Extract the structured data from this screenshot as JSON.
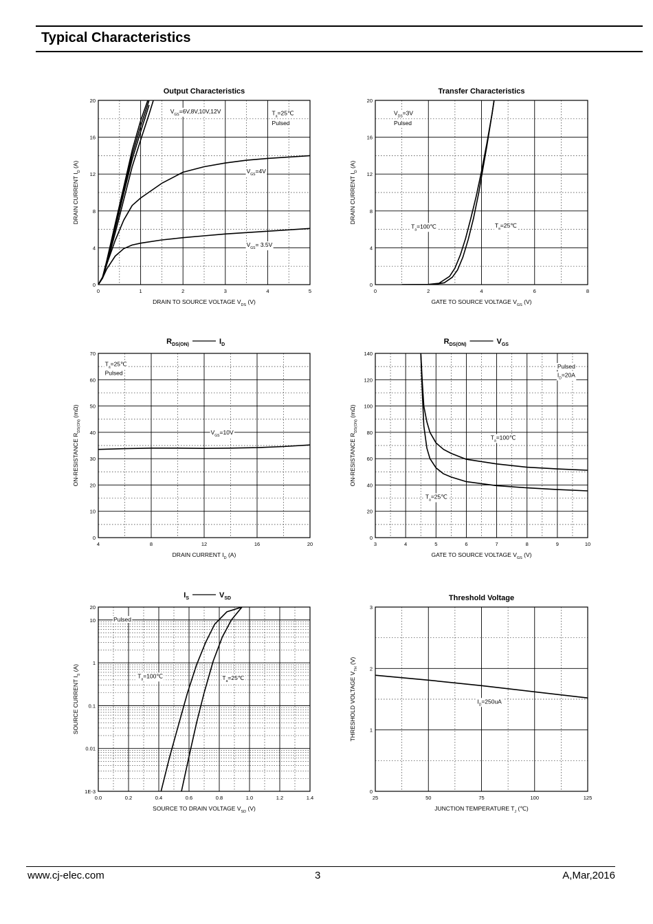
{
  "page": {
    "title": "Typical Characteristics",
    "footer_left": "www.cj-elec.com",
    "footer_center": "3",
    "footer_right": "A,Mar,2016"
  },
  "chart_data": [
    {
      "id": "output",
      "type": "line",
      "title": "Output Characteristics",
      "xlabel": "DRAIN TO SOURCE VOLTAGE",
      "xsym": "V",
      "xsub": "DS",
      "xunit": "(V)",
      "ylabel": "DRAIN CURRENT",
      "ysym": "I",
      "ysub": "D",
      "yunit": "(A)",
      "xlim": [
        0,
        5
      ],
      "ylim": [
        0,
        20
      ],
      "xticks": [
        0,
        1,
        2,
        3,
        4,
        5
      ],
      "yticks": [
        0,
        4,
        8,
        12,
        16,
        20
      ],
      "series": [
        {
          "name": "VGS=12V",
          "x": [
            0,
            0.1,
            0.2,
            0.4,
            0.6,
            0.8,
            1.0,
            1.2,
            1.3
          ],
          "y": [
            0,
            0.8,
            2.6,
            6.6,
            10.6,
            14.6,
            17.8,
            20.4,
            21.5
          ]
        },
        {
          "name": "VGS=10V",
          "x": [
            0,
            0.1,
            0.2,
            0.4,
            0.6,
            0.8,
            1.0,
            1.2,
            1.25
          ],
          "y": [
            0,
            0.8,
            2.5,
            6.4,
            10.3,
            14.1,
            17.2,
            20.0,
            20.6
          ]
        },
        {
          "name": "VGS=8V",
          "x": [
            0,
            0.1,
            0.2,
            0.4,
            0.6,
            0.8,
            1.0,
            1.2
          ],
          "y": [
            0,
            0.8,
            2.4,
            6.1,
            9.9,
            13.6,
            16.6,
            19.5
          ]
        },
        {
          "name": "VGS=6V",
          "x": [
            0,
            0.1,
            0.2,
            0.4,
            0.6,
            0.8,
            1.0,
            1.2,
            1.3
          ],
          "y": [
            0,
            0.7,
            2.2,
            5.6,
            9.2,
            12.8,
            15.7,
            18.5,
            20.0
          ]
        },
        {
          "name": "VGS=4V",
          "x": [
            0,
            0.1,
            0.2,
            0.4,
            0.6,
            0.8,
            1.0,
            1.5,
            2.0,
            2.5,
            3.0,
            3.5,
            4.0,
            4.5,
            5.0
          ],
          "y": [
            0,
            0.8,
            2.2,
            4.8,
            7.0,
            8.6,
            9.4,
            11.0,
            12.2,
            12.8,
            13.2,
            13.5,
            13.7,
            13.85,
            14.0
          ]
        },
        {
          "name": "VGS=3.5V",
          "x": [
            0,
            0.1,
            0.2,
            0.4,
            0.6,
            0.8,
            1.0,
            1.5,
            2.0,
            2.5,
            3.0,
            3.5,
            4.0,
            4.5,
            5.0
          ],
          "y": [
            0,
            0.7,
            1.7,
            3.1,
            3.9,
            4.3,
            4.5,
            4.85,
            5.1,
            5.3,
            5.5,
            5.65,
            5.8,
            5.95,
            6.1
          ]
        }
      ],
      "annotations": [
        {
          "text": "V",
          "sub": "GS",
          "rest": "=6V,8V,10V,12V",
          "x": 1.7,
          "y": 18.6
        },
        {
          "text": "T",
          "sub": "a",
          "rest": "=25℃",
          "x": 4.1,
          "y": 18.4
        },
        {
          "text": "Pulsed",
          "x": 4.1,
          "y": 17.3
        },
        {
          "text": "V",
          "sub": "GS",
          "rest": "=4V",
          "x": 3.5,
          "y": 12.1
        },
        {
          "text": "V",
          "sub": "GS",
          "rest": "= 3.5V",
          "x": 3.5,
          "y": 4.1
        }
      ]
    },
    {
      "id": "transfer",
      "type": "line",
      "title": "Transfer Characteristics",
      "xlabel": "GATE TO SOURCE VOLTAGE",
      "xsym": "V",
      "xsub": "GS",
      "xunit": "(V)",
      "ylabel": "DRAIN CURRENT",
      "ysym": "I",
      "ysub": "D",
      "yunit": "(A)",
      "xlim": [
        0,
        8
      ],
      "ylim": [
        0,
        20
      ],
      "xticks": [
        0,
        2,
        4,
        6,
        8
      ],
      "yticks": [
        0,
        4,
        8,
        12,
        16,
        20
      ],
      "series": [
        {
          "name": "Ta=100℃",
          "x": [
            1.0,
            2.0,
            2.4,
            2.8,
            3.0,
            3.2,
            3.4,
            3.6,
            3.8,
            4.0,
            4.2,
            4.4,
            4.5
          ],
          "y": [
            0,
            0.02,
            0.15,
            0.9,
            1.8,
            3.2,
            5.0,
            7.2,
            9.6,
            12.3,
            15.3,
            18.6,
            20.5
          ]
        },
        {
          "name": "Ta=25℃",
          "x": [
            1.0,
            2.2,
            2.6,
            2.9,
            3.1,
            3.3,
            3.5,
            3.7,
            3.9,
            4.0,
            4.2,
            4.4,
            4.5
          ],
          "y": [
            0,
            0.02,
            0.2,
            0.8,
            1.6,
            3.0,
            4.9,
            7.2,
            10.0,
            11.7,
            15.0,
            18.6,
            20.5
          ]
        }
      ],
      "annotations": [
        {
          "text": "V",
          "sub": "DS",
          "rest": "=3V",
          "x": 0.7,
          "y": 18.4
        },
        {
          "text": "Pulsed",
          "x": 0.7,
          "y": 17.3
        },
        {
          "text": "T",
          "sub": "a",
          "rest": "=100℃",
          "x": 1.35,
          "y": 6.1
        },
        {
          "text": "T",
          "sub": "a",
          "rest": "=25℃",
          "x": 4.5,
          "y": 6.2
        }
      ]
    },
    {
      "id": "rdson-id",
      "type": "line",
      "title_parts": [
        "R",
        "DS(ON)",
        "I",
        "D"
      ],
      "xlabel": "DRAIN CURRENT",
      "xsym": "I",
      "xsub": "D",
      "xunit": "(A)",
      "ylabel": "ON-RESISTANCE",
      "ysym": "R",
      "ysub": "DS(ON)",
      "yunit": "(mΩ)",
      "xlim": [
        4,
        20
      ],
      "ylim": [
        0,
        70
      ],
      "xticks": [
        4,
        8,
        12,
        16,
        20
      ],
      "yticks": [
        0,
        10,
        20,
        30,
        40,
        50,
        60,
        70
      ],
      "series": [
        {
          "name": "VGS=10V",
          "x": [
            4,
            6,
            8,
            10,
            12,
            14,
            16,
            18,
            20
          ],
          "y": [
            33.5,
            33.8,
            34.0,
            34.0,
            33.9,
            34.0,
            34.2,
            34.6,
            35.2
          ]
        }
      ],
      "annotations": [
        {
          "text": "T",
          "sub": "a",
          "rest": "=25℃",
          "x": 4.5,
          "y": 65.2
        },
        {
          "text": "Pulsed",
          "x": 4.5,
          "y": 61.8
        },
        {
          "text": "V",
          "sub": "GS",
          "rest": "=10V",
          "x": 12.5,
          "y": 39.2
        }
      ]
    },
    {
      "id": "rdson-vgs",
      "type": "line",
      "title_parts": [
        "R",
        "DS(ON)",
        "V",
        "GS"
      ],
      "xlabel": "GATE TO SOURCE VOLTAGE",
      "xsym": "V",
      "xsub": "GS",
      "xunit": "(V)",
      "ylabel": "ON-RESISTANCE",
      "ysym": "R",
      "ysub": "DS(ON)",
      "yunit": "(mΩ)",
      "xlim": [
        3,
        10
      ],
      "ylim": [
        0,
        140
      ],
      "xticks": [
        3,
        4,
        5,
        6,
        7,
        8,
        9,
        10
      ],
      "yticks": [
        0,
        20,
        40,
        60,
        80,
        100,
        120,
        140
      ],
      "series": [
        {
          "name": "Ta=100℃",
          "x": [
            4.5,
            4.55,
            4.6,
            4.7,
            4.8,
            5.0,
            5.25,
            5.5,
            6.0,
            7.0,
            8.0,
            9.0,
            10.0
          ],
          "y": [
            140,
            118,
            100,
            88,
            80,
            72,
            67,
            64,
            59.5,
            56,
            53.5,
            52.2,
            51.2
          ]
        },
        {
          "name": "Ta=25℃",
          "x": [
            4.5,
            4.55,
            4.6,
            4.7,
            4.8,
            5.0,
            5.25,
            5.5,
            6.0,
            7.0,
            8.0,
            9.0,
            10.0
          ],
          "y": [
            140,
            110,
            85,
            68,
            60,
            53,
            48.5,
            46,
            42.5,
            39.5,
            37.8,
            36.5,
            35.5
          ]
        }
      ],
      "annotations": [
        {
          "text": "Pulsed",
          "x": 9.0,
          "y": 128.5
        },
        {
          "text": "I",
          "sub": "D",
          "rest": "=20A",
          "x": 9.0,
          "y": 122.0
        },
        {
          "text": "T",
          "sub": "a",
          "rest": "=100℃",
          "x": 6.8,
          "y": 74.5
        },
        {
          "text": "T",
          "sub": "a",
          "rest": "=25℃",
          "x": 4.65,
          "y": 29.5
        }
      ]
    },
    {
      "id": "is-vsd",
      "type": "line",
      "yscale": "log",
      "title_parts": [
        "I",
        "S",
        "V",
        "SD"
      ],
      "xlabel": "SOURCE TO DRAIN VOLTAGE",
      "xsym": "V",
      "xsub": "SD",
      "xunit": "(V)",
      "ylabel": "SOURCE CURRENT",
      "ysym": "I",
      "ysub": "S",
      "yunit": "(A)",
      "xlim": [
        0.0,
        1.4
      ],
      "ylim": [
        0.001,
        20
      ],
      "xticks": [
        0.0,
        0.2,
        0.4,
        0.6,
        0.8,
        1.0,
        1.2,
        1.4
      ],
      "xtick_labels": [
        "0.0",
        "0.2",
        "0.4",
        "0.6",
        "0.8",
        "1.0",
        "1.2",
        "1.4"
      ],
      "yticks": [
        0.001,
        0.01,
        0.1,
        1,
        10,
        20
      ],
      "ytick_labels": [
        "1E-3",
        "0.01",
        "0.1",
        "1",
        "10",
        "20"
      ],
      "series": [
        {
          "name": "Ta=100℃",
          "x": [
            0.415,
            0.47,
            0.53,
            0.59,
            0.65,
            0.71,
            0.77,
            0.85,
            0.95
          ],
          "y": [
            0.001,
            0.006,
            0.035,
            0.2,
            0.9,
            3.0,
            8.0,
            15.5,
            20
          ]
        },
        {
          "name": "Ta=25℃",
          "x": [
            0.55,
            0.6,
            0.65,
            0.7,
            0.76,
            0.82,
            0.88,
            0.95
          ],
          "y": [
            0.001,
            0.0065,
            0.04,
            0.2,
            1.1,
            4.0,
            10.0,
            20
          ]
        }
      ],
      "annotations": [
        {
          "text": "Pulsed",
          "x": 0.1,
          "y": 9.2
        },
        {
          "text": "T",
          "sub": "a",
          "rest": "=100℃",
          "x": 0.26,
          "y": 0.44
        },
        {
          "text": "T",
          "sub": "a",
          "rest": "=25℃",
          "x": 0.82,
          "y": 0.4
        }
      ]
    },
    {
      "id": "threshold",
      "type": "line",
      "title": "Threshold Voltage",
      "xlabel": "JUNCTION TEMPERATURE",
      "xsym": "T",
      "xsub": "J",
      "xunit": "(℃)",
      "ylabel": "THRESHOLD VOLTAGE",
      "ysym": "V",
      "ysub": "TH",
      "yunit": "(V)",
      "xlim": [
        25,
        125
      ],
      "ylim": [
        0,
        3
      ],
      "xticks": [
        25,
        50,
        75,
        100,
        125
      ],
      "yticks": [
        0,
        1,
        2,
        3
      ],
      "series": [
        {
          "name": "ID=250uA",
          "x": [
            25,
            50,
            75,
            100,
            125
          ],
          "y": [
            1.89,
            1.81,
            1.72,
            1.62,
            1.52
          ]
        }
      ],
      "annotations": [
        {
          "text": "I",
          "sub": "D",
          "rest": "=250uA",
          "x": 73,
          "y": 1.43
        }
      ]
    }
  ]
}
